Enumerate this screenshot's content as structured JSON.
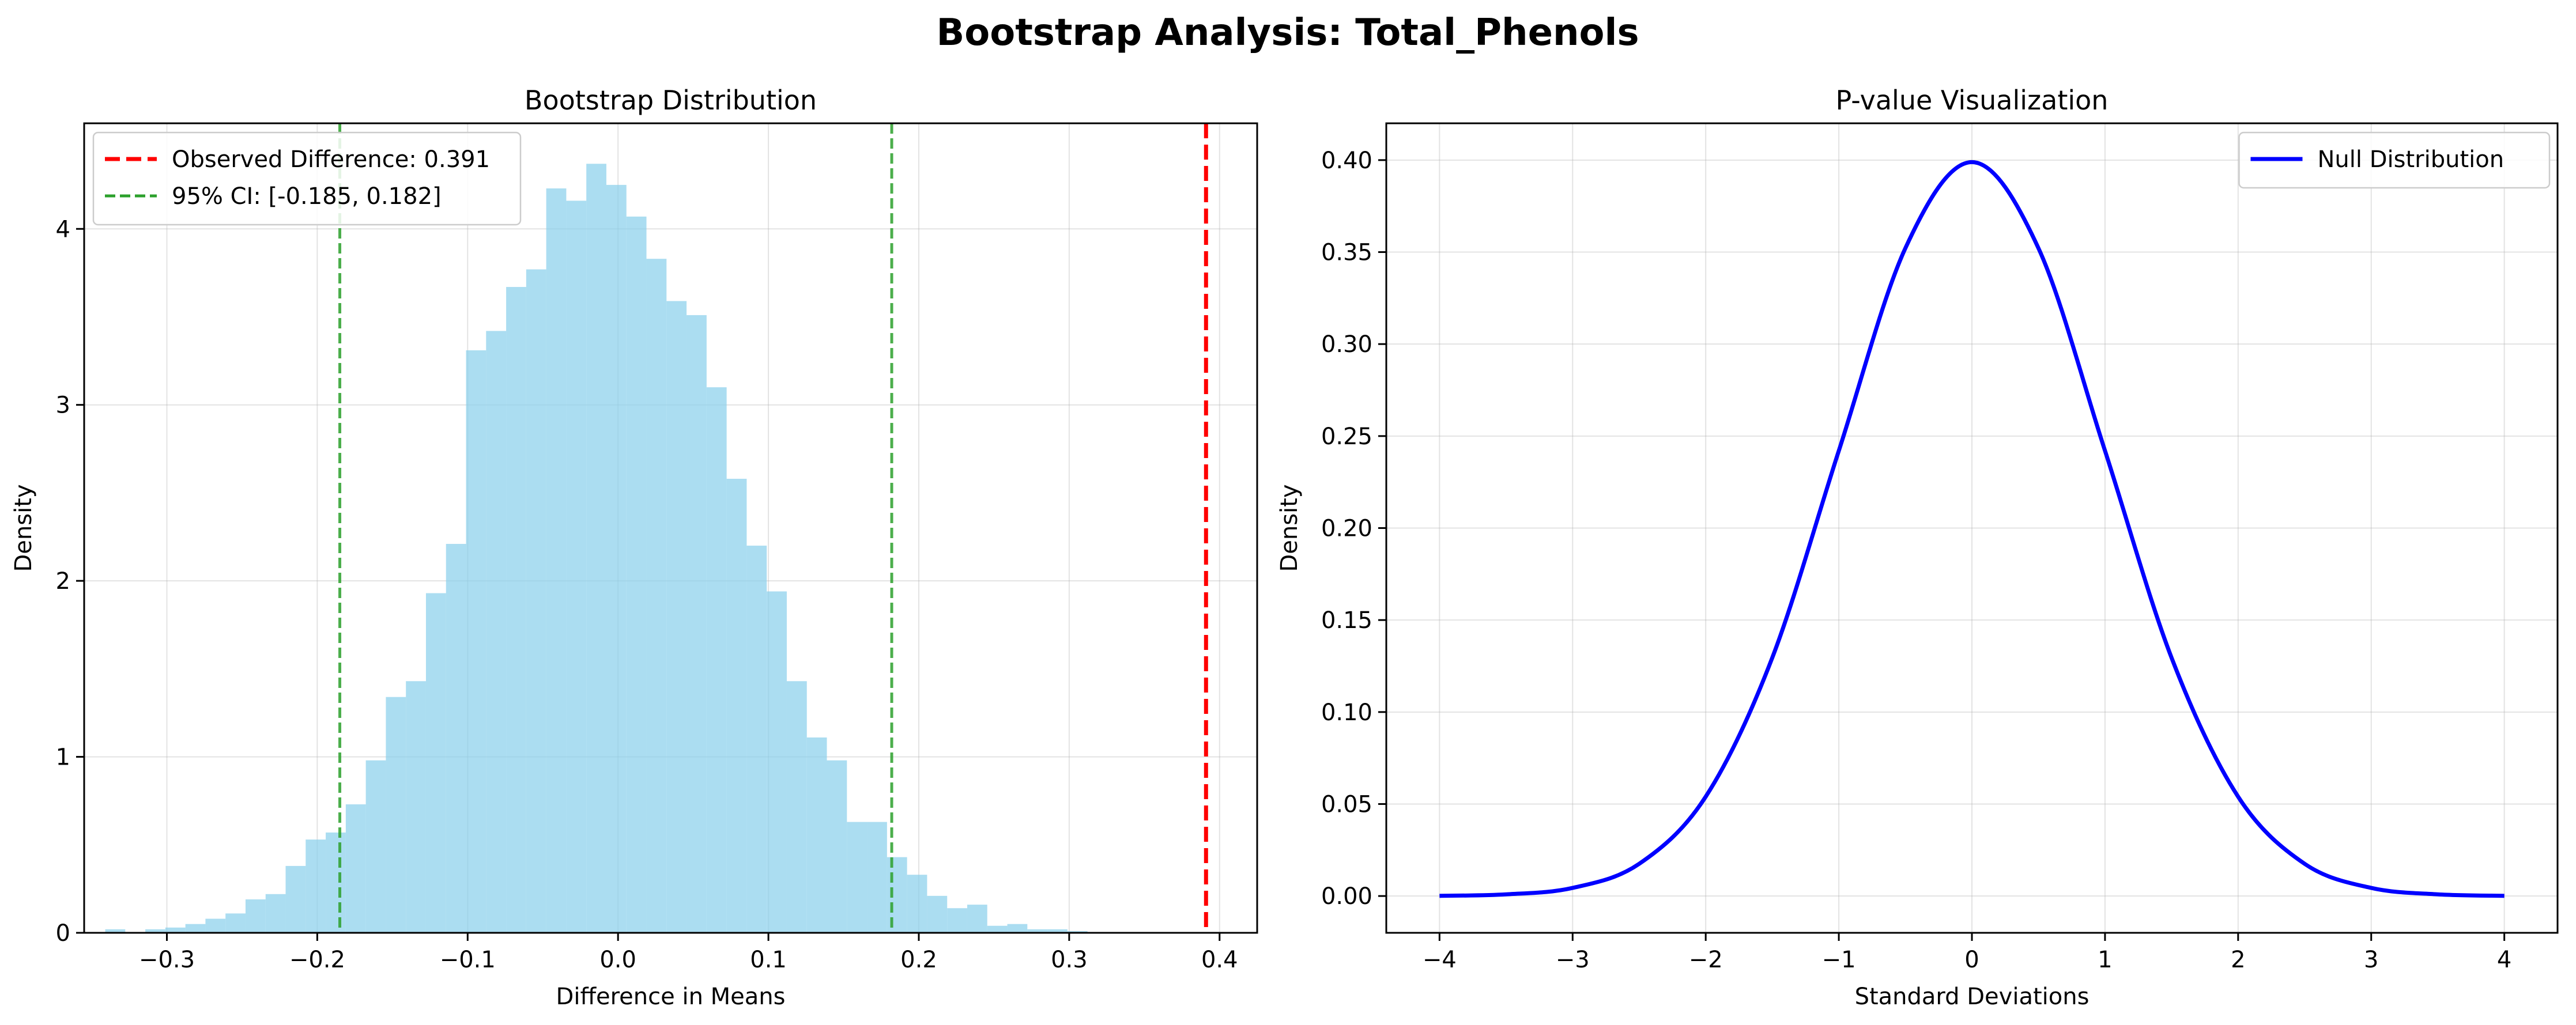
{
  "figure": {
    "suptitle": "Bootstrap Analysis: Total_Phenols"
  },
  "colors": {
    "hist": "#87CEEB",
    "observed": "#ff0000",
    "ci": "#2ca02c",
    "null": "#0000ff",
    "grid": "#b0b0b0"
  },
  "chart_data": [
    {
      "type": "histogram",
      "title": "Bootstrap Distribution",
      "xlabel": "Difference in Means",
      "ylabel": "Density",
      "xlim": [
        -0.355,
        0.425
      ],
      "ylim": [
        0,
        4.6
      ],
      "xticks": [
        -0.3,
        -0.2,
        -0.1,
        0.0,
        0.1,
        0.2,
        0.3,
        0.4
      ],
      "xtick_labels": [
        "−0.3",
        "−0.2",
        "−0.1",
        "0.0",
        "0.1",
        "0.2",
        "0.3",
        "0.4"
      ],
      "yticks": [
        0,
        1,
        2,
        3,
        4
      ],
      "ytick_labels": [
        "0",
        "1",
        "2",
        "3",
        "4"
      ],
      "grid": true,
      "legend_position": "upper-left",
      "bins": {
        "start": -0.341,
        "width": 0.01333,
        "densities": [
          0.02,
          0.0,
          0.02,
          0.03,
          0.05,
          0.08,
          0.11,
          0.19,
          0.22,
          0.38,
          0.53,
          0.57,
          0.73,
          0.98,
          1.34,
          1.43,
          1.93,
          2.21,
          3.31,
          3.42,
          3.67,
          3.77,
          4.23,
          4.16,
          4.37,
          4.25,
          4.07,
          3.83,
          3.59,
          3.51,
          3.1,
          2.58,
          2.2,
          1.94,
          1.43,
          1.11,
          0.98,
          0.63,
          0.63,
          0.43,
          0.33,
          0.21,
          0.14,
          0.16,
          0.04,
          0.05,
          0.02,
          0.02,
          0.01
        ]
      },
      "vlines": [
        {
          "name": "Observed Difference: 0.391",
          "x": 0.391,
          "style": "dashed",
          "color_key": "observed"
        },
        {
          "name": "95% CI: [-0.185, 0.182]",
          "x": -0.185,
          "style": "dashed",
          "color_key": "ci"
        },
        {
          "name": "",
          "x": 0.182,
          "style": "dashed",
          "color_key": "ci"
        }
      ],
      "legend": [
        "Observed Difference: 0.391",
        "95% CI: [-0.185, 0.182]"
      ]
    },
    {
      "type": "line",
      "title": "P-value Visualization",
      "xlabel": "Standard Deviations",
      "ylabel": "Density",
      "xlim": [
        -4.4,
        4.4
      ],
      "ylim": [
        -0.02,
        0.42
      ],
      "xticks": [
        -4,
        -3,
        -2,
        -1,
        0,
        1,
        2,
        3,
        4
      ],
      "xtick_labels": [
        "−4",
        "−3",
        "−2",
        "−1",
        "0",
        "1",
        "2",
        "3",
        "4"
      ],
      "yticks": [
        0.0,
        0.05,
        0.1,
        0.15,
        0.2,
        0.25,
        0.3,
        0.35,
        0.4
      ],
      "ytick_labels": [
        "0.00",
        "0.05",
        "0.10",
        "0.15",
        "0.20",
        "0.25",
        "0.30",
        "0.35",
        "0.40"
      ],
      "grid": true,
      "legend_position": "upper-right",
      "series": [
        {
          "name": "Null Distribution",
          "x": [
            -4.0,
            -3.5,
            -3.0,
            -2.5,
            -2.0,
            -1.5,
            -1.0,
            -0.5,
            0.0,
            0.5,
            1.0,
            1.5,
            2.0,
            2.5,
            3.0,
            3.5,
            4.0
          ],
          "y": [
            0.0001,
            0.0009,
            0.0044,
            0.0175,
            0.054,
            0.1295,
            0.242,
            0.3521,
            0.3989,
            0.3521,
            0.242,
            0.1295,
            0.054,
            0.0175,
            0.0044,
            0.0009,
            0.0001
          ]
        }
      ],
      "legend": [
        "Null Distribution"
      ]
    }
  ]
}
